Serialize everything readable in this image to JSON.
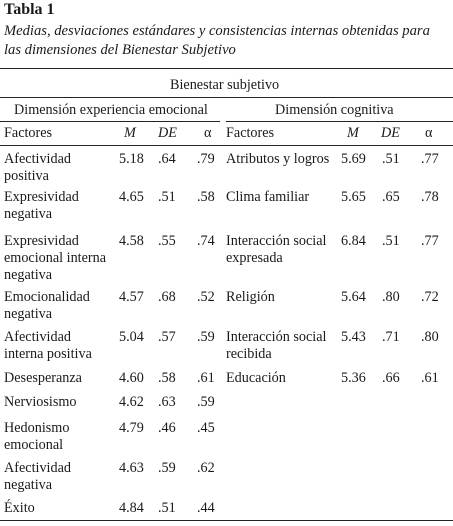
{
  "title": "Tabla 1",
  "caption": "Medias, desviaciones estándares y consistencias internas obtenidas para las dimensiones del Bienestar Subjetivo",
  "spanner": "Bienestar subjetivo",
  "groups": {
    "left": "Dimensión experiencia emocional",
    "right": "Dimensión cognitiva"
  },
  "headers": {
    "left": {
      "factor": "Factores",
      "m": "M",
      "de": "DE",
      "alpha": "α"
    },
    "right": {
      "factor": "Factores",
      "m": "M",
      "de": "DE",
      "alpha": "α"
    }
  },
  "left_rows": [
    {
      "factor": [
        "Afectividad",
        "positiva"
      ],
      "m": "5.18",
      "de": ".64",
      "alpha": ".79"
    },
    {
      "factor": [
        "Expresividad",
        "negativa"
      ],
      "m": "4.65",
      "de": ".51",
      "alpha": ".58"
    },
    {
      "factor": [
        "Expresividad",
        "emocional interna",
        "negativa"
      ],
      "m": "4.58",
      "de": ".55",
      "alpha": ".74"
    },
    {
      "factor": [
        "Emocionalidad",
        "negativa"
      ],
      "m": "4.57",
      "de": ".68",
      "alpha": ".52"
    },
    {
      "factor": [
        "Afectividad",
        "interna positiva"
      ],
      "m": "5.04",
      "de": ".57",
      "alpha": ".59"
    },
    {
      "factor": [
        "Desesperanza"
      ],
      "m": "4.60",
      "de": ".58",
      "alpha": ".61"
    },
    {
      "factor": [
        "Nerviosismo"
      ],
      "m": "4.62",
      "de": ".63",
      "alpha": ".59"
    },
    {
      "factor": [
        "Hedonismo",
        "emocional"
      ],
      "m": "4.79",
      "de": ".46",
      "alpha": ".45"
    },
    {
      "factor": [
        "Afectividad",
        "negativa"
      ],
      "m": "4.63",
      "de": ".59",
      "alpha": ".62"
    },
    {
      "factor": [
        "Éxito"
      ],
      "m": "4.84",
      "de": ".51",
      "alpha": ".44"
    }
  ],
  "right_rows": [
    {
      "factor": [
        "Atributos y logros"
      ],
      "m": "5.69",
      "de": ".51",
      "alpha": ".77"
    },
    {
      "factor": [
        "Clima familiar"
      ],
      "m": "5.65",
      "de": ".65",
      "alpha": ".78"
    },
    {
      "factor": [
        "Interacción social",
        "expresada"
      ],
      "m": "6.84",
      "de": ".51",
      "alpha": ".77"
    },
    {
      "factor": [
        "Religión"
      ],
      "m": "5.64",
      "de": ".80",
      "alpha": ".72"
    },
    {
      "factor": [
        "Interacción social",
        "recibida"
      ],
      "m": "5.43",
      "de": ".71",
      "alpha": ".80"
    },
    {
      "factor": [
        "Educación"
      ],
      "m": "5.36",
      "de": ".66",
      "alpha": ".61"
    }
  ]
}
